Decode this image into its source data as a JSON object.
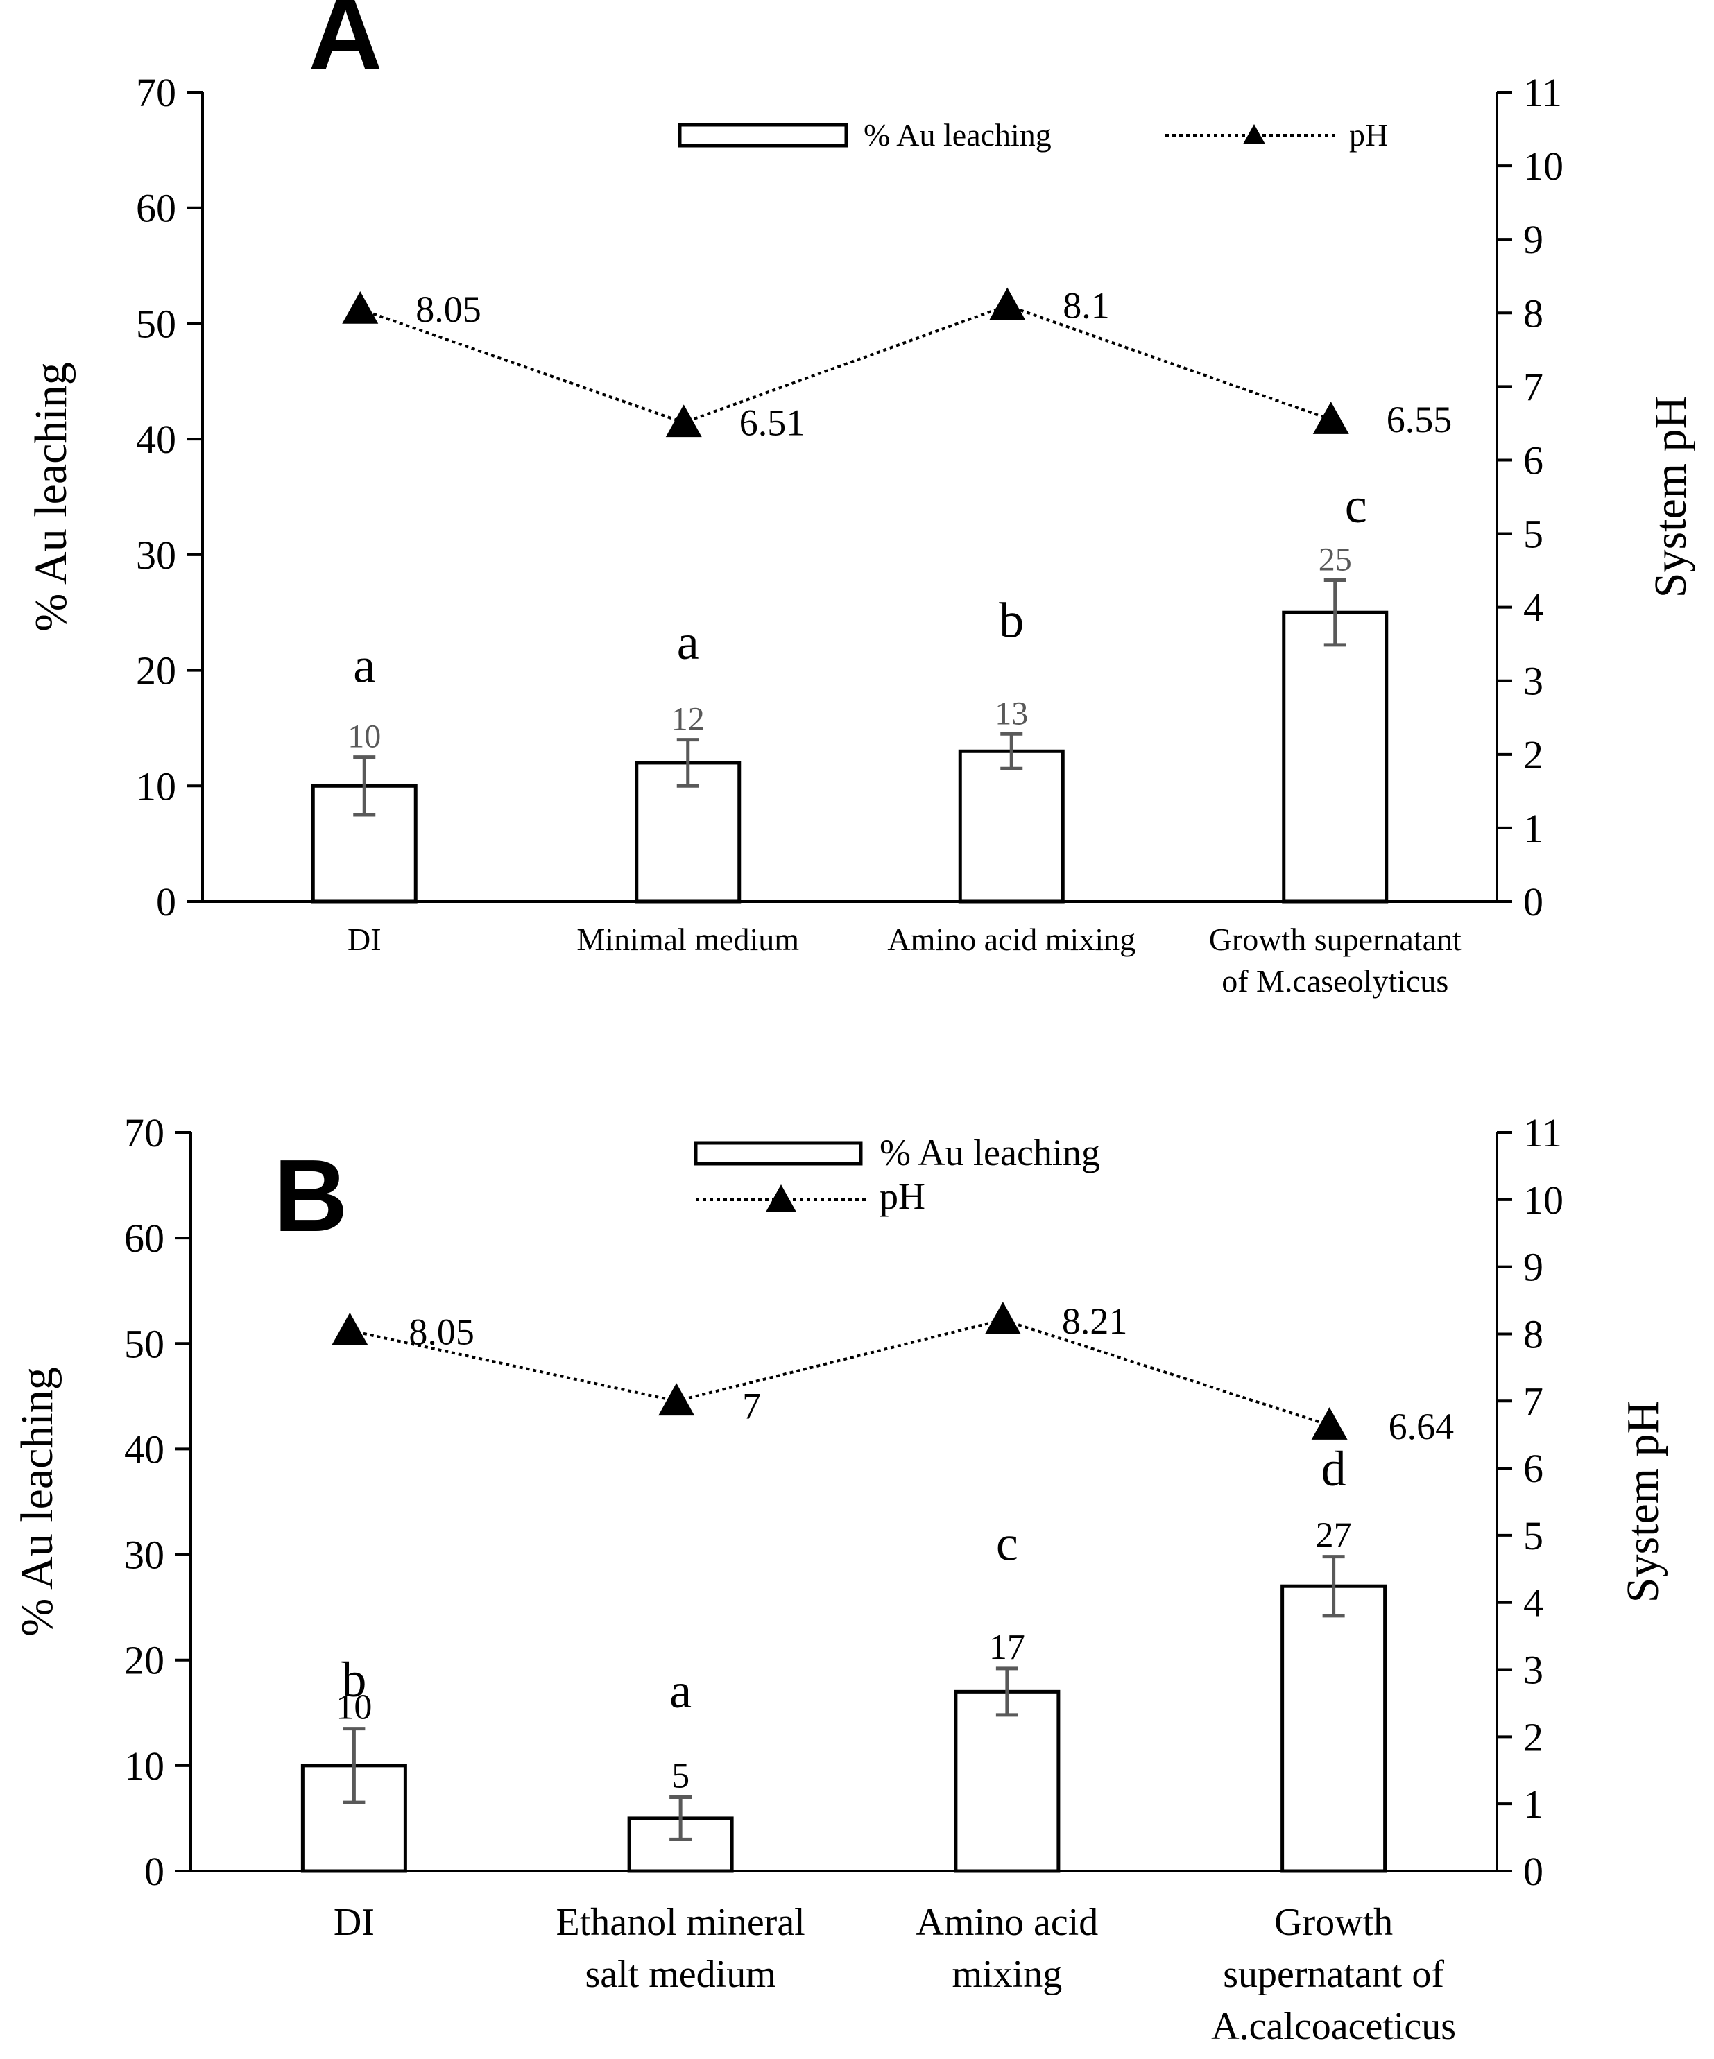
{
  "chart_data": [
    {
      "type": "bar",
      "panel_label": "A",
      "categories": [
        "DI",
        "Minimal medium",
        "Amino acid mixing",
        "Growth supernatant\nof M.caseolyticus"
      ],
      "ylabel": "% Au leaching",
      "y2label": "System pH",
      "ylim": [
        0,
        70
      ],
      "y2lim": [
        0,
        11
      ],
      "yticks": [
        0,
        10,
        20,
        30,
        40,
        50,
        60,
        70
      ],
      "y2ticks": [
        0,
        1,
        2,
        3,
        4,
        5,
        6,
        7,
        8,
        9,
        10,
        11
      ],
      "legend": {
        "placement": "top-center",
        "bar_label": "% Au leaching",
        "line_label": "pH"
      },
      "series": [
        {
          "name": "% Au leaching",
          "kind": "bar",
          "axis": "left",
          "values": [
            10,
            12,
            13,
            25
          ],
          "errors": [
            2.5,
            2.0,
            1.5,
            2.8
          ],
          "value_labels": [
            "10",
            "12",
            "13",
            "25"
          ]
        },
        {
          "name": "pH",
          "kind": "line",
          "axis": "right",
          "style": "dotted",
          "marker": "triangle",
          "values": [
            8.05,
            6.51,
            8.1,
            6.55
          ],
          "value_labels": [
            "8.05",
            "6.51",
            "8.1",
            "6.55"
          ]
        }
      ],
      "significance_letters": [
        "a",
        "a",
        "b",
        "c"
      ]
    },
    {
      "type": "bar",
      "panel_label": "B",
      "categories": [
        "DI",
        "Ethanol mineral\nsalt medium",
        "Amino acid\nmixing",
        "Growth\nsupernatant of\nA.calcoaceticus"
      ],
      "ylabel": "% Au leaching",
      "y2label": "System pH",
      "ylim": [
        0,
        70
      ],
      "y2lim": [
        0,
        11
      ],
      "yticks": [
        0,
        10,
        20,
        30,
        40,
        50,
        60,
        70
      ],
      "y2ticks": [
        0,
        1,
        2,
        3,
        4,
        5,
        6,
        7,
        8,
        9,
        10,
        11
      ],
      "legend": {
        "placement": "top-center",
        "bar_label": "% Au leaching",
        "line_label": "pH"
      },
      "series": [
        {
          "name": "% Au leaching",
          "kind": "bar",
          "axis": "left",
          "values": [
            10,
            5,
            17,
            27
          ],
          "errors": [
            3.5,
            2.0,
            2.2,
            2.8
          ],
          "value_labels": [
            "10",
            "5",
            "17",
            "27"
          ]
        },
        {
          "name": "pH",
          "kind": "line",
          "axis": "right",
          "style": "dotted",
          "marker": "triangle",
          "values": [
            8.05,
            7,
            8.21,
            6.64
          ],
          "value_labels": [
            "8.05",
            "7",
            "8.21",
            "6.64"
          ]
        }
      ],
      "significance_letters": [
        "b",
        "a",
        "c",
        "d"
      ]
    }
  ],
  "colors": {
    "axis": "#000000",
    "bar_fill": "#ffffff",
    "bar_stroke": "#000000",
    "error_bar": "#595959",
    "value_label": "#595959",
    "line": "#000000"
  }
}
